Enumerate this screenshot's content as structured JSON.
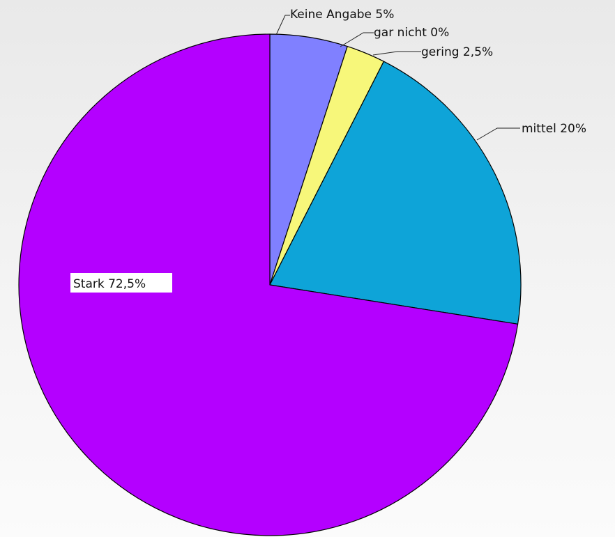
{
  "chart_data": {
    "type": "pie",
    "start": "12 o'clock",
    "direction": "clockwise",
    "slices": [
      {
        "label": "Keine Angabe 5%",
        "value": 5,
        "color": "#8080ff"
      },
      {
        "label": "gar nicht 0%",
        "value": 0,
        "color": "#ffffff"
      },
      {
        "label": "gering 2,5%",
        "value": 2.5,
        "color": "#f7f77a"
      },
      {
        "label": "mittel 20%",
        "value": 20,
        "color": "#0ea4d8"
      },
      {
        "label": "Stark 72,5%",
        "value": 72.5,
        "color": "#b400ff"
      }
    ]
  }
}
